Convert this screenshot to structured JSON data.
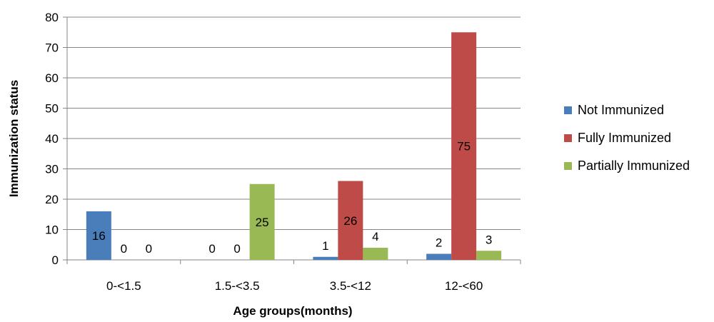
{
  "chart_data": {
    "type": "bar",
    "title": "",
    "xlabel": "Age groups(months)",
    "ylabel": "Immunization status",
    "categories": [
      "0-<1.5",
      "1.5-<3.5",
      "3.5-<12",
      "12-<60"
    ],
    "series": [
      {
        "name": "Not Immunized",
        "color": "#4a7ebb",
        "values": [
          16,
          0,
          1,
          2
        ],
        "labels": [
          "16",
          "0",
          "1",
          "2"
        ]
      },
      {
        "name": "Fully Immunized",
        "color": "#be4b48",
        "values": [
          0,
          0,
          26,
          75
        ],
        "labels": [
          "0",
          "0",
          "26",
          "75"
        ]
      },
      {
        "name": "Partially Immunized",
        "color": "#98b954",
        "values": [
          0,
          25,
          4,
          3
        ],
        "labels": [
          "0",
          "25",
          "4",
          "3"
        ]
      }
    ],
    "ylim": [
      0,
      80
    ],
    "yticks": [
      "0",
      "10",
      "20",
      "30",
      "40",
      "50",
      "60",
      "70",
      "80"
    ],
    "grid": true,
    "legend_position": "right"
  }
}
